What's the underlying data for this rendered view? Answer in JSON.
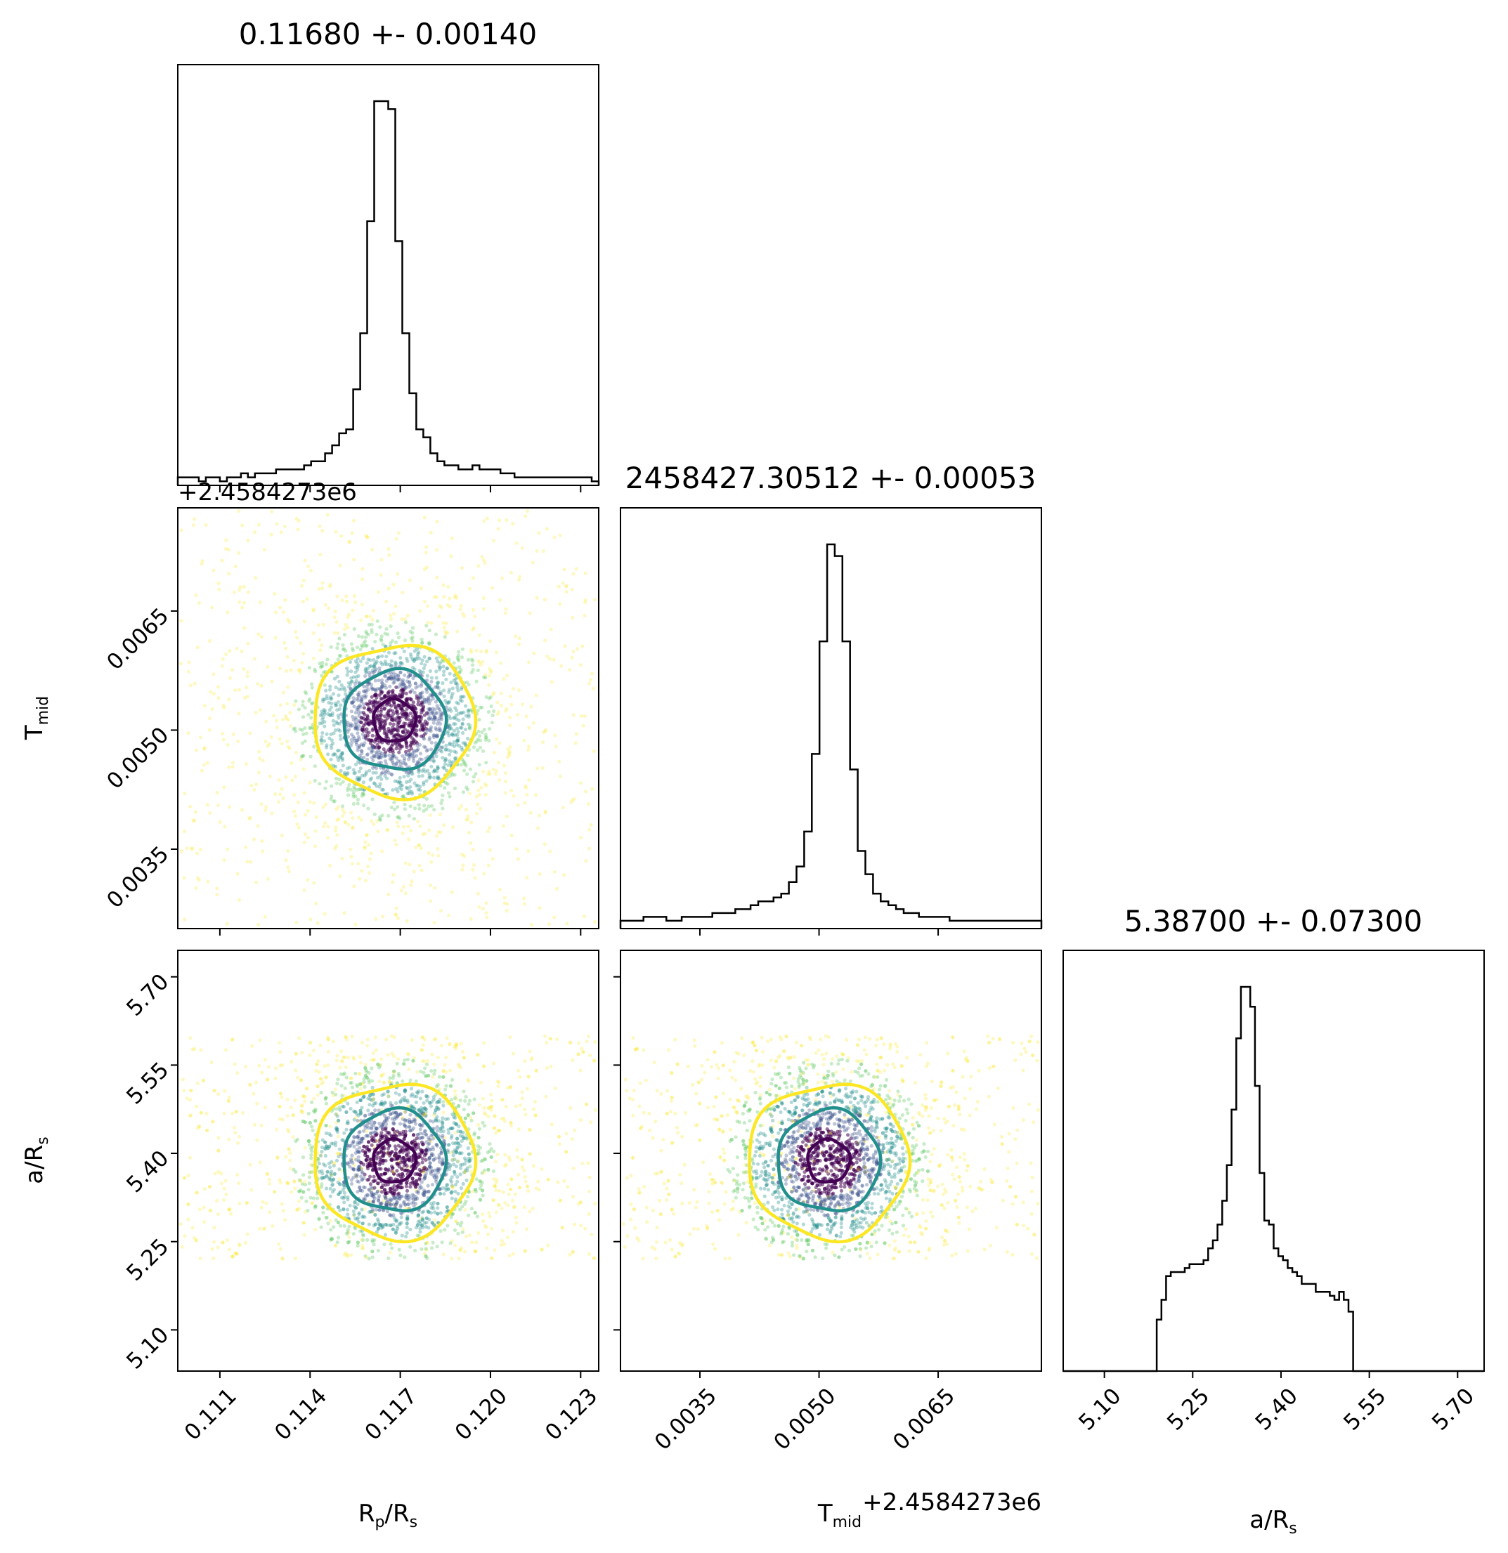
{
  "chart_data": {
    "type": "corner",
    "parameters": [
      {
        "name": "Rp/Rs",
        "label_main": "R",
        "label_sub": "p",
        "label_main2": "/R",
        "label_sub2": "s",
        "title": "0.11680 +- 0.00140",
        "mean": 0.1168,
        "std": 0.0014,
        "range": [
          0.1096,
          0.1236
        ],
        "ticks": [
          0.111,
          0.114,
          0.117,
          0.12,
          0.123
        ],
        "tick_labels": [
          "0.111",
          "0.114",
          "0.117",
          "0.120",
          "0.123"
        ]
      },
      {
        "name": "Tmid",
        "label_main": "T",
        "label_sub": "mid",
        "title": "2458427.30512 +- 0.00053",
        "mean": 0.00512,
        "std": 0.00053,
        "range": [
          0.0025,
          0.0078
        ],
        "ticks": [
          0.0035,
          0.005,
          0.0065
        ],
        "tick_labels": [
          "0.0035",
          "0.0050",
          "0.0065"
        ],
        "offset_text": "+2.4584273e6"
      },
      {
        "name": "a/Rs",
        "label_main": "a/R",
        "label_sub": "s",
        "title": "5.38700 +- 0.07300",
        "mean": 5.387,
        "std": 0.073,
        "range": [
          5.03,
          5.745
        ],
        "ticks": [
          5.1,
          5.25,
          5.4,
          5.55,
          5.7
        ],
        "tick_labels": [
          "5.10",
          "5.25",
          "5.40",
          "5.55",
          "5.70"
        ],
        "prior_range": [
          5.22,
          5.6
        ]
      }
    ],
    "histograms": {
      "rp_counts": [
        2,
        2,
        2,
        1,
        2,
        2,
        1,
        2,
        2,
        3,
        2,
        3,
        3,
        3,
        4,
        4,
        4,
        4,
        5,
        6,
        6,
        8,
        10,
        13,
        14,
        24,
        38,
        66,
        96,
        96,
        94,
        61,
        38,
        23,
        14,
        12,
        8,
        6,
        5,
        5,
        4,
        4,
        5,
        4,
        4,
        4,
        3,
        3,
        2,
        2,
        2,
        2,
        2,
        2,
        2,
        2,
        2,
        2,
        2,
        1
      ],
      "tmid_counts": [
        2,
        2,
        2,
        3,
        3,
        3,
        2,
        2,
        3,
        3,
        3,
        3,
        4,
        4,
        4,
        5,
        5,
        6,
        7,
        7,
        8,
        9,
        12,
        16,
        25,
        45,
        74,
        99,
        96,
        74,
        41,
        20,
        14,
        9,
        7,
        6,
        5,
        4,
        4,
        3,
        3,
        3,
        3,
        2,
        2,
        2,
        2,
        2,
        2,
        2,
        2,
        2,
        2,
        2,
        2
      ],
      "ars_counts": [
        0,
        0,
        0,
        0,
        0,
        0,
        0,
        0,
        0,
        0,
        0,
        0,
        0,
        0,
        0,
        0,
        0,
        0,
        0,
        0,
        13,
        18,
        24,
        25,
        25,
        25,
        26,
        27,
        27,
        27,
        28,
        31,
        33,
        37,
        43,
        52,
        66,
        84,
        97,
        97,
        92,
        72,
        50,
        38,
        37,
        31,
        29,
        28,
        26,
        25,
        24,
        22,
        22,
        22,
        20,
        20,
        20,
        19,
        18,
        20,
        18,
        15,
        0,
        0,
        0,
        0,
        0,
        0,
        0,
        0,
        0,
        0,
        0,
        0,
        0,
        0,
        0,
        0,
        0,
        0,
        0,
        0,
        0,
        0,
        0,
        0,
        0,
        0,
        0,
        0
      ]
    },
    "contour_levels": [
      {
        "sigma": 0.5,
        "color": "#440154"
      },
      {
        "sigma": 1.18,
        "color": "#21908d"
      },
      {
        "sigma": 1.8,
        "color": "#fde725"
      }
    ],
    "scatter_colors": [
      "#440154",
      "#3b528b",
      "#21908d",
      "#5ec962",
      "#fde725"
    ],
    "grid": false,
    "legend": "none"
  }
}
